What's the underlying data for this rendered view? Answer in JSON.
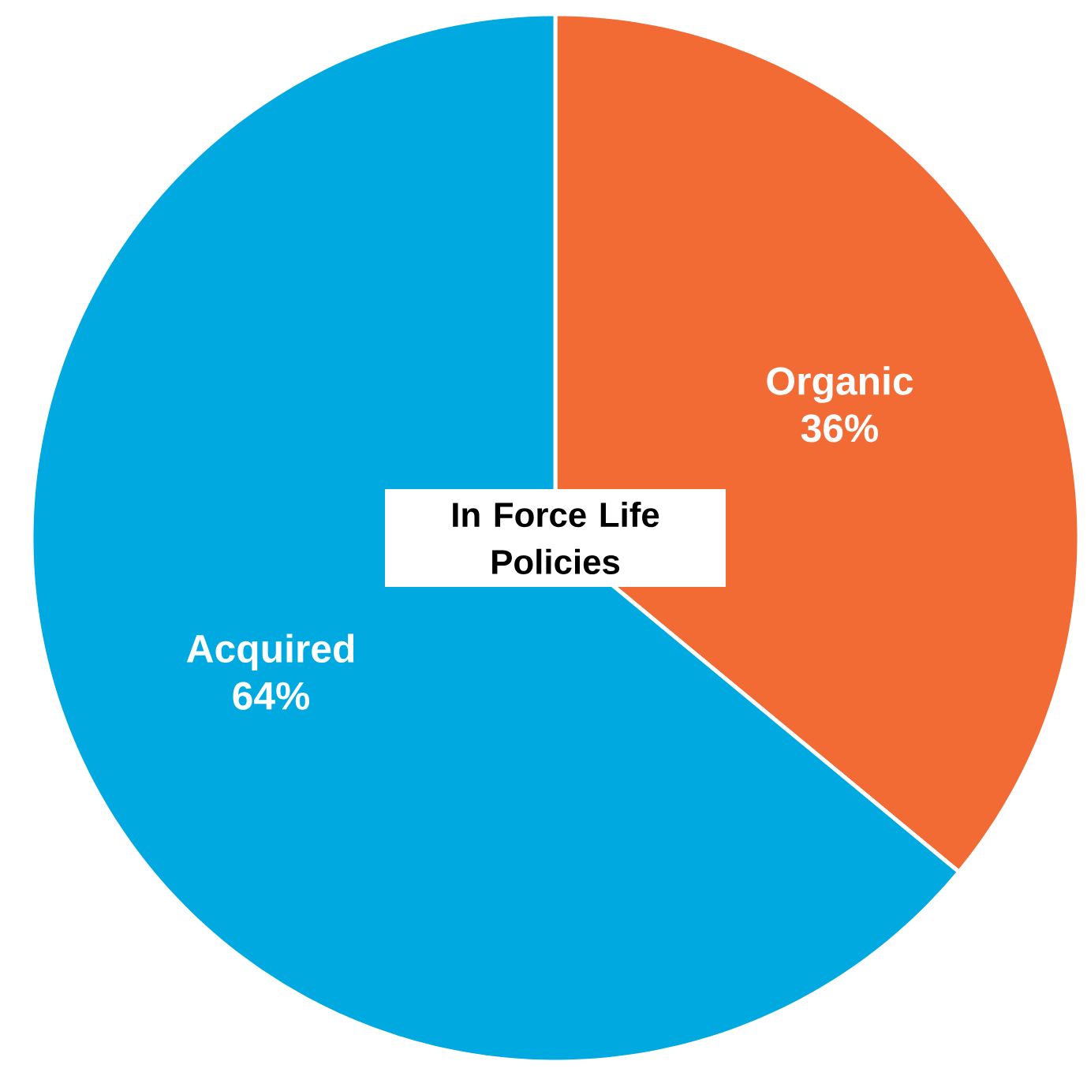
{
  "chart_data": {
    "type": "pie",
    "title": "In Force Life Policies",
    "categories": [
      "Organic",
      "Acquired"
    ],
    "values": [
      36,
      64
    ],
    "value_labels": [
      "36%",
      "64%"
    ],
    "colors": [
      "#f26b35",
      "#00a9e0"
    ]
  }
}
